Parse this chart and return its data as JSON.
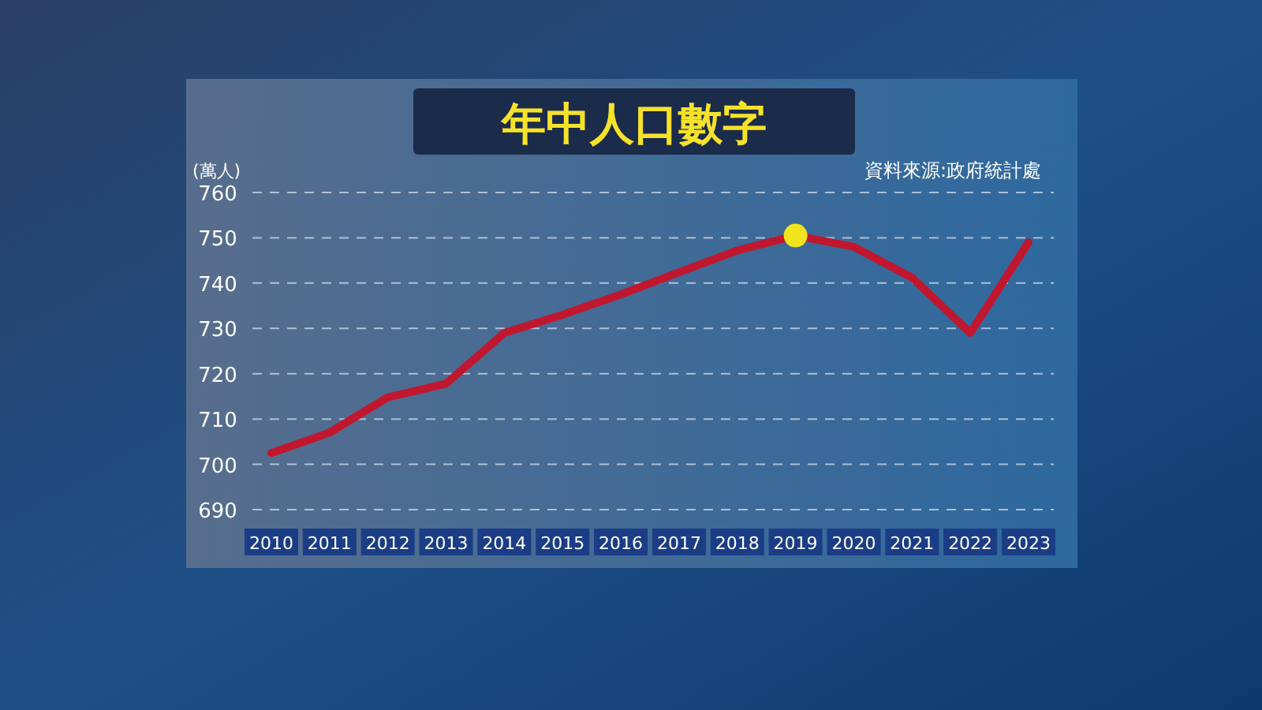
{
  "chart_data": {
    "type": "line",
    "title": "年中人口數字",
    "ylabel": "(萬人)",
    "annotations": [
      "資料來源:政府統計處"
    ],
    "categories": [
      "2010",
      "2011",
      "2012",
      "2013",
      "2014",
      "2015",
      "2016",
      "2017",
      "2018",
      "2019",
      "2020",
      "2021",
      "2022",
      "2023"
    ],
    "series": [
      {
        "color": "#c0172f",
        "values": [
          702.5,
          707,
          714.8,
          717.8,
          729,
          733,
          737.5,
          742.4,
          747.2,
          750.5,
          748,
          741.2,
          729,
          749
        ]
      },
      {
        "type": "scatter",
        "color": "#f2e41c",
        "values": [
          null,
          null,
          null,
          null,
          null,
          null,
          null,
          null,
          null,
          750.5,
          null,
          null,
          null,
          null
        ],
        "marker": "circle"
      }
    ],
    "ylim": [
      690,
      760
    ],
    "yticks": [
      690,
      700,
      710,
      720,
      730,
      740,
      750,
      760
    ],
    "grid": "y",
    "line_style": "solid"
  }
}
